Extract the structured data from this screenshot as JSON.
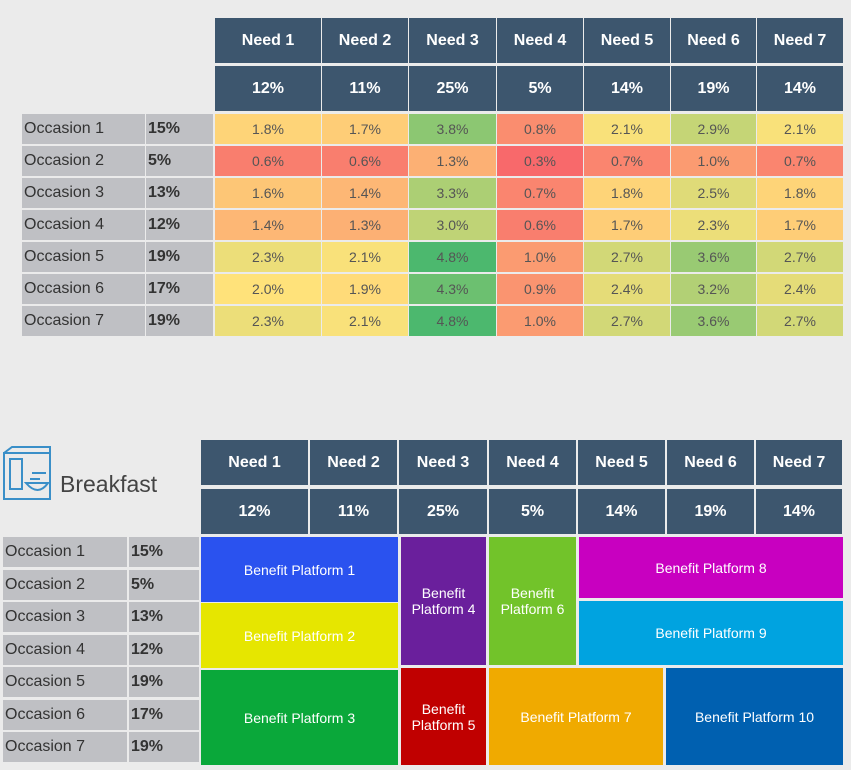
{
  "top_table": {
    "columns": [
      "Need 1",
      "Need 2",
      "Need 3",
      "Need 4",
      "Need 5",
      "Need 6",
      "Need 7"
    ],
    "column_shares": [
      "12%",
      "11%",
      "25%",
      "5%",
      "14%",
      "19%",
      "14%"
    ],
    "rows": [
      {
        "label": "Occasion 1",
        "share": "15%",
        "cells": [
          "1.8%",
          "1.7%",
          "3.8%",
          "0.8%",
          "2.1%",
          "2.9%",
          "2.1%"
        ]
      },
      {
        "label": "Occasion 2",
        "share": "5%",
        "cells": [
          "0.6%",
          "0.6%",
          "1.3%",
          "0.3%",
          "0.7%",
          "1.0%",
          "0.7%"
        ]
      },
      {
        "label": "Occasion 3",
        "share": "13%",
        "cells": [
          "1.6%",
          "1.4%",
          "3.3%",
          "0.7%",
          "1.8%",
          "2.5%",
          "1.8%"
        ]
      },
      {
        "label": "Occasion 4",
        "share": "12%",
        "cells": [
          "1.4%",
          "1.3%",
          "3.0%",
          "0.6%",
          "1.7%",
          "2.3%",
          "1.7%"
        ]
      },
      {
        "label": "Occasion 5",
        "share": "19%",
        "cells": [
          "2.3%",
          "2.1%",
          "4.8%",
          "1.0%",
          "2.7%",
          "3.6%",
          "2.7%"
        ]
      },
      {
        "label": "Occasion 6",
        "share": "17%",
        "cells": [
          "2.0%",
          "1.9%",
          "4.3%",
          "0.9%",
          "2.4%",
          "3.2%",
          "2.4%"
        ]
      },
      {
        "label": "Occasion 7",
        "share": "19%",
        "cells": [
          "2.3%",
          "2.1%",
          "4.8%",
          "1.0%",
          "2.7%",
          "3.6%",
          "2.7%"
        ]
      }
    ],
    "color_scale": [
      "#f8696b",
      "#ffe27a",
      "#4cb86e"
    ]
  },
  "bottom_table": {
    "title": "Breakfast",
    "columns": [
      "Need 1",
      "Need 2",
      "Need 3",
      "Need 4",
      "Need 5",
      "Need 6",
      "Need 7"
    ],
    "column_shares": [
      "12%",
      "11%",
      "25%",
      "5%",
      "14%",
      "19%",
      "14%"
    ],
    "rows": [
      {
        "label": "Occasion 1",
        "share": "15%"
      },
      {
        "label": "Occasion 2",
        "share": "5%"
      },
      {
        "label": "Occasion 3",
        "share": "13%"
      },
      {
        "label": "Occasion 4",
        "share": "12%"
      },
      {
        "label": "Occasion 5",
        "share": "19%"
      },
      {
        "label": "Occasion 6",
        "share": "17%"
      },
      {
        "label": "Occasion 7",
        "share": "19%"
      }
    ],
    "platforms": [
      {
        "label": "Benefit Platform 1",
        "color": "#2a52ef"
      },
      {
        "label": "Benefit Platform 2",
        "color": "#e6e600"
      },
      {
        "label": "Benefit Platform 3",
        "color": "#0aa83a"
      },
      {
        "label": "Benefit Platform 4",
        "color": "#6a1f9c"
      },
      {
        "label": "Benefit Platform 5",
        "color": "#c00000"
      },
      {
        "label": "Benefit Platform 6",
        "color": "#72c32a"
      },
      {
        "label": "Benefit Platform 7",
        "color": "#f0aa00"
      },
      {
        "label": "Benefit Platform 8",
        "color": "#c800c0"
      },
      {
        "label": "Benefit Platform 9",
        "color": "#00a3e0"
      },
      {
        "label": "Benefit Platform 10",
        "color": "#0060b0"
      }
    ]
  }
}
